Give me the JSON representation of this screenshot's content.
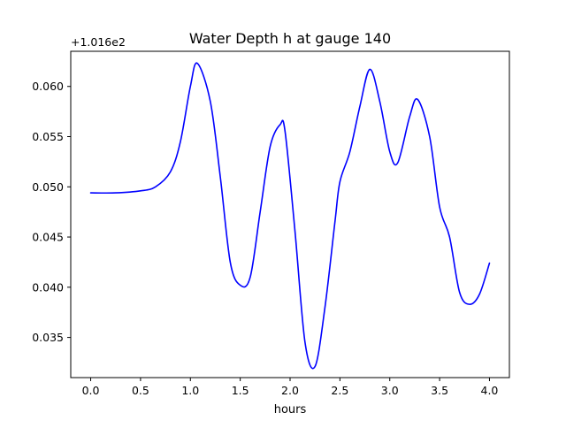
{
  "chart_data": {
    "type": "line",
    "title": "Water Depth h at gauge 140",
    "xlabel": "hours",
    "ylabel": "",
    "offset_label": "+1.016e2",
    "xlim": [
      -0.2,
      4.2
    ],
    "ylim": [
      0.031,
      0.0635
    ],
    "xticks": [
      0.0,
      0.5,
      1.0,
      1.5,
      2.0,
      2.5,
      3.0,
      3.5,
      4.0
    ],
    "xtick_labels": [
      "0.0",
      "0.5",
      "1.0",
      "1.5",
      "2.0",
      "2.5",
      "3.0",
      "3.5",
      "4.0"
    ],
    "yticks": [
      0.035,
      0.04,
      0.045,
      0.05,
      0.055,
      0.06
    ],
    "ytick_labels": [
      "0.035",
      "0.040",
      "0.045",
      "0.050",
      "0.055",
      "0.060"
    ],
    "grid": false,
    "series": [
      {
        "color": "#0000ff",
        "x": [
          0.0,
          0.25,
          0.5,
          0.65,
          0.8,
          0.9,
          1.0,
          1.07,
          1.2,
          1.3,
          1.4,
          1.5,
          1.6,
          1.7,
          1.8,
          1.9,
          1.95,
          2.05,
          2.15,
          2.25,
          2.35,
          2.45,
          2.5,
          2.6,
          2.7,
          2.8,
          2.9,
          3.0,
          3.08,
          3.2,
          3.28,
          3.4,
          3.5,
          3.6,
          3.7,
          3.8,
          3.9,
          4.0
        ],
        "y": [
          0.0494,
          0.0494,
          0.0496,
          0.05,
          0.0515,
          0.0545,
          0.06,
          0.0623,
          0.0585,
          0.051,
          0.0425,
          0.0402,
          0.041,
          0.0475,
          0.054,
          0.0562,
          0.0555,
          0.0455,
          0.0345,
          0.0321,
          0.038,
          0.0465,
          0.0505,
          0.0535,
          0.058,
          0.0617,
          0.0585,
          0.0535,
          0.0524,
          0.057,
          0.0587,
          0.055,
          0.048,
          0.045,
          0.0395,
          0.0383,
          0.0393,
          0.0424
        ]
      }
    ]
  }
}
